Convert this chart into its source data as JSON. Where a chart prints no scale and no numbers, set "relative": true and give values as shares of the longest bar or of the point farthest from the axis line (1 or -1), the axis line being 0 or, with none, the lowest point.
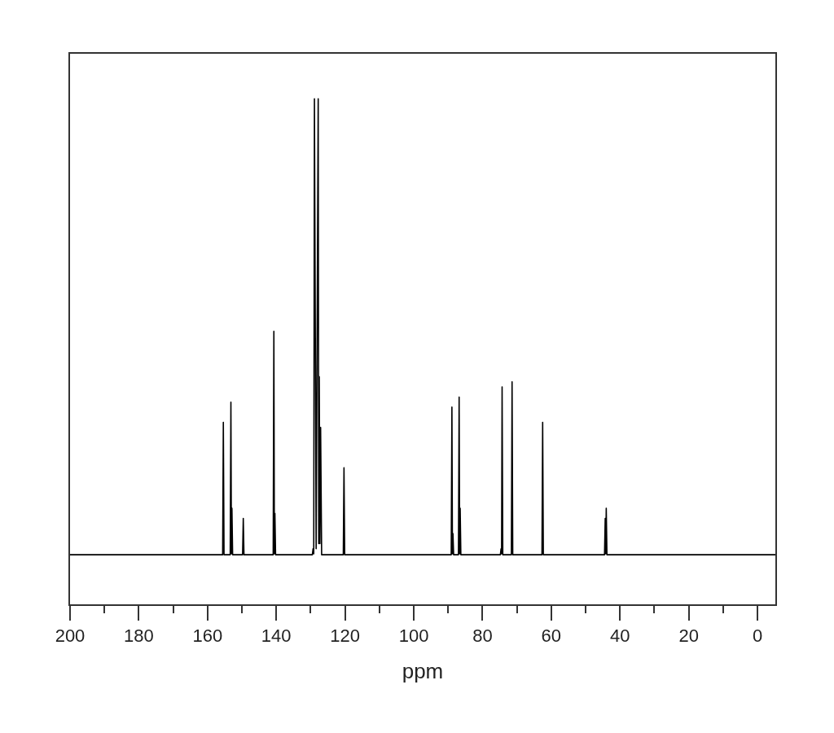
{
  "chart_data": {
    "type": "line",
    "relative": true,
    "xlabel": "ppm",
    "color": "#000000",
    "x": [
      200,
      155.6,
      155.4,
      155.2,
      153.4,
      153.2,
      153.05,
      152.9,
      152.7,
      149.8,
      149.6,
      149.4,
      140.9,
      140.7,
      140.55,
      140.4,
      140.2,
      129.5,
      129.3,
      129.1,
      128.9,
      128.4,
      127.8,
      127.65,
      127.5,
      127.3,
      127.1,
      126.8,
      120.5,
      120.3,
      120.1,
      89.1,
      88.9,
      88.75,
      88.6,
      88.4,
      87.0,
      86.8,
      86.65,
      86.5,
      86.3,
      74.8,
      74.6,
      74.45,
      74.3,
      74.1,
      71.6,
      71.4,
      71.2,
      62.7,
      62.5,
      62.3,
      44.5,
      44.3,
      44.15,
      44.0,
      43.8,
      -5.2
    ],
    "values": [
      0.098,
      0.098,
      0.36,
      0.098,
      0.098,
      0.4,
      0.1,
      0.19,
      0.098,
      0.098,
      0.17,
      0.098,
      0.098,
      0.54,
      0.1,
      0.18,
      0.098,
      0.098,
      0.11,
      0.1,
      1.0,
      0.11,
      1.0,
      0.12,
      0.45,
      0.12,
      0.35,
      0.098,
      0.098,
      0.27,
      0.098,
      0.098,
      0.39,
      0.1,
      0.14,
      0.098,
      0.098,
      0.41,
      0.1,
      0.19,
      0.098,
      0.098,
      0.11,
      0.1,
      0.43,
      0.098,
      0.098,
      0.44,
      0.098,
      0.098,
      0.36,
      0.098,
      0.098,
      0.17,
      0.1,
      0.19,
      0.098,
      0.098
    ],
    "xlim": [
      200,
      -5.2
    ],
    "xticks": [
      200,
      {
        "value": 190,
        "label": null
      },
      180,
      {
        "value": 170,
        "label": null
      },
      160,
      {
        "value": 150,
        "label": null
      },
      140,
      {
        "value": 130,
        "label": null
      },
      120,
      {
        "value": 110,
        "label": null
      },
      100,
      {
        "value": 90,
        "label": null
      },
      80,
      {
        "value": 70,
        "label": null
      },
      60,
      {
        "value": 50,
        "label": null
      },
      40,
      {
        "value": 30,
        "label": null
      },
      20,
      {
        "value": 10,
        "label": null
      },
      0
    ]
  }
}
